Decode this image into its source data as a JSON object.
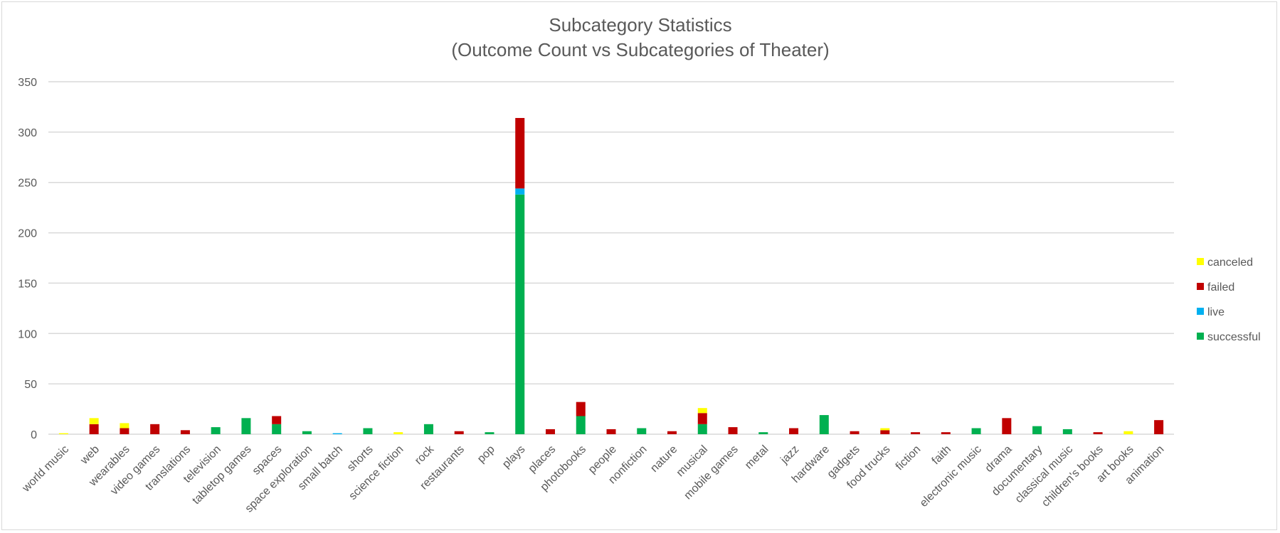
{
  "chart_data": {
    "type": "bar",
    "stacked": true,
    "title_lines": [
      "Subcategory Statistics",
      "(Outcome Count vs Subcategories of Theater)"
    ],
    "xlabel": "",
    "ylabel": "",
    "ylim": [
      0,
      350
    ],
    "yticks": [
      0,
      50,
      100,
      150,
      200,
      250,
      300,
      350
    ],
    "grid": true,
    "legend_position": "right",
    "categories": [
      "world music",
      "web",
      "wearables",
      "video games",
      "translations",
      "television",
      "tabletop games",
      "spaces",
      "space exploration",
      "small batch",
      "shorts",
      "science fiction",
      "rock",
      "restaurants",
      "pop",
      "plays",
      "places",
      "photobooks",
      "people",
      "nonfiction",
      "nature",
      "musical",
      "mobile games",
      "metal",
      "jazz",
      "hardware",
      "gadgets",
      "food trucks",
      "fiction",
      "faith",
      "electronic music",
      "drama",
      "documentary",
      "classical music",
      "children's books",
      "art books",
      "animation"
    ],
    "series": [
      {
        "name": "successful",
        "color": "#00b050",
        "values": [
          0,
          0,
          0,
          0,
          0,
          7,
          16,
          10,
          3,
          0,
          6,
          0,
          10,
          0,
          2,
          238,
          0,
          18,
          0,
          6,
          0,
          10,
          0,
          2,
          0,
          19,
          0,
          0,
          0,
          0,
          6,
          0,
          8,
          5,
          0,
          0,
          0
        ]
      },
      {
        "name": "live",
        "color": "#00b0f0",
        "values": [
          0,
          0,
          0,
          0,
          0,
          0,
          0,
          0,
          0,
          1,
          0,
          0,
          0,
          0,
          0,
          6,
          0,
          0,
          0,
          0,
          0,
          0,
          0,
          0,
          0,
          0,
          0,
          0,
          0,
          0,
          0,
          0,
          0,
          0,
          0,
          0,
          0
        ]
      },
      {
        "name": "failed",
        "color": "#c00000",
        "values": [
          0,
          10,
          6,
          10,
          4,
          0,
          0,
          8,
          0,
          0,
          0,
          0,
          0,
          3,
          0,
          70,
          5,
          14,
          5,
          0,
          3,
          11,
          7,
          0,
          6,
          0,
          3,
          4,
          2,
          2,
          0,
          16,
          0,
          0,
          2,
          0,
          14
        ]
      },
      {
        "name": "canceled",
        "color": "#ffff00",
        "values": [
          1,
          6,
          5,
          0,
          0,
          0,
          0,
          0,
          0,
          0,
          0,
          2,
          0,
          0,
          0,
          0,
          0,
          0,
          0,
          0,
          0,
          5,
          0,
          0,
          0,
          0,
          0,
          2,
          0,
          0,
          0,
          0,
          0,
          0,
          0,
          3,
          0
        ]
      }
    ],
    "legend_order": [
      "canceled",
      "failed",
      "live",
      "successful"
    ]
  }
}
